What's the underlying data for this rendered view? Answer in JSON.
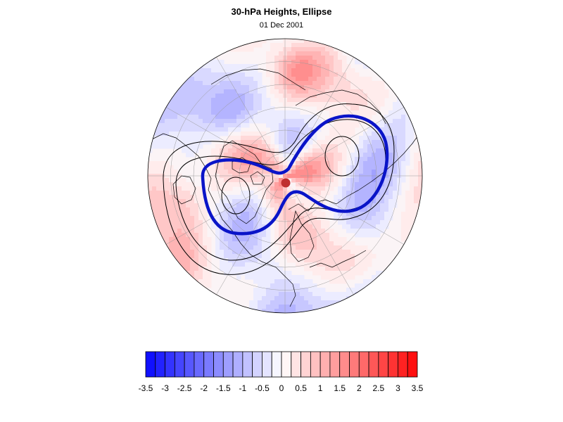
{
  "title": "30-hPa Heights, Ellipse",
  "subtitle": "01 Dec 2001",
  "colors": {
    "negative_max": "#1010ff",
    "positive_max": "#ff1010",
    "neutral": "#ffffff",
    "ellipse_contour": "#0a14c8",
    "height_contours": "#000000",
    "center_marker": "#c03030"
  },
  "colorbar": {
    "levels": [
      -3.5,
      -3.25,
      -3,
      -2.75,
      -2.5,
      -2.25,
      -2,
      -1.75,
      -1.5,
      -1.25,
      -1,
      -0.75,
      -0.5,
      -0.25,
      0,
      0.25,
      0.5,
      0.75,
      1,
      1.25,
      1.5,
      1.75,
      2,
      2.25,
      2.5,
      2.75,
      3,
      3.25,
      3.5
    ],
    "tick_labels": [
      "-3.5",
      "-3",
      "-2.5",
      "-2",
      "-1.5",
      "-1",
      "-0.5",
      "0",
      "0.5",
      "1",
      "1.5",
      "2",
      "2.5",
      "3",
      "3.5"
    ]
  },
  "map": {
    "projection": "polar-stereographic",
    "hemisphere": "northern",
    "grid": true,
    "features": [
      "continental-coastlines",
      "height-contours",
      "ellipse-contour",
      "vortex-center-marker",
      "anomaly-shading"
    ]
  }
}
